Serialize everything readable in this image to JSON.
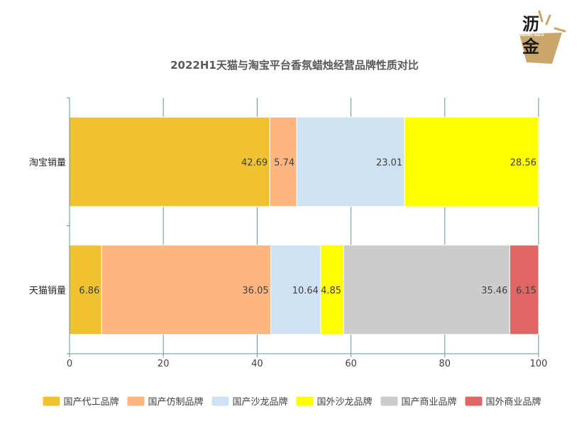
{
  "logo": {
    "char_top": "沥",
    "char_bottom": "金",
    "tagline": "FINDING GOLD",
    "color": "#c9a66b"
  },
  "chart_data": {
    "type": "bar",
    "orientation": "horizontal",
    "stacked": true,
    "title": "2022H1天猫与淘宝平台香氛蜡烛经营品牌性质对比",
    "categories": [
      "淘宝销量",
      "天猫销量"
    ],
    "xlim": [
      0,
      100
    ],
    "x_ticks": [
      0,
      20,
      40,
      60,
      80,
      100
    ],
    "grid": true,
    "legend_position": "bottom",
    "series": [
      {
        "name": "国产代工品牌",
        "color": "#f0c230",
        "values": [
          42.69,
          6.86
        ]
      },
      {
        "name": "国产仿制品牌",
        "color": "#ffb580",
        "values": [
          5.74,
          36.05
        ]
      },
      {
        "name": "国产沙龙品牌",
        "color": "#cfe2f3",
        "values": [
          23.01,
          10.64
        ]
      },
      {
        "name": "国外沙龙品牌",
        "color": "#ffff00",
        "values": [
          28.56,
          4.85
        ]
      },
      {
        "name": "国产商业品牌",
        "color": "#cccccc",
        "values": [
          0,
          35.46
        ]
      },
      {
        "name": "国外商业品牌",
        "color": "#e06666",
        "values": [
          0,
          6.15
        ]
      }
    ]
  }
}
